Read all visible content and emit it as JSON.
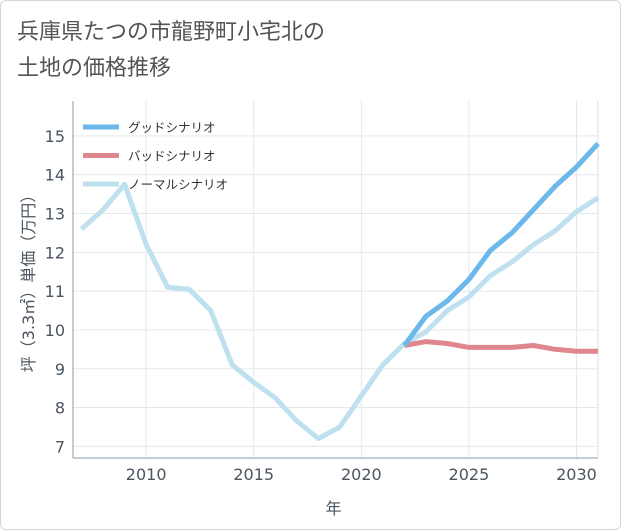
{
  "title_lines": [
    "兵庫県たつの市龍野町小宅北の",
    "土地の価格推移"
  ],
  "chart_data": {
    "type": "line",
    "title": "兵庫県たつの市龍野町小宅北の土地の価格推移",
    "xlabel": "年",
    "ylabel": "坪（3.3㎡）単価（万円）",
    "xlim": [
      2006.6,
      2031
    ],
    "ylim": [
      6.7,
      15.9
    ],
    "xticks": [
      2010,
      2015,
      2020,
      2025,
      2030
    ],
    "yticks": [
      7,
      8,
      9,
      10,
      11,
      12,
      13,
      14,
      15
    ],
    "grid": true,
    "legend_position": "top-left",
    "series": [
      {
        "name": "グッドシナリオ",
        "color": "#6cb8ea",
        "x": [
          2022,
          2023,
          2024,
          2025,
          2026,
          2027,
          2028,
          2029,
          2030,
          2031
        ],
        "y": [
          9.6,
          10.35,
          10.75,
          11.3,
          12.05,
          12.5,
          13.1,
          13.7,
          14.2,
          14.8
        ]
      },
      {
        "name": "バッドシナリオ",
        "color": "#e0868d",
        "x": [
          2022,
          2023,
          2024,
          2025,
          2026,
          2027,
          2028,
          2029,
          2030,
          2031
        ],
        "y": [
          9.6,
          9.7,
          9.65,
          9.55,
          9.55,
          9.55,
          9.6,
          9.5,
          9.45,
          9.45
        ]
      },
      {
        "name": "ノーマルシナリオ",
        "color": "#bfe0ef",
        "x": [
          2007,
          2008,
          2009,
          2010,
          2011,
          2012,
          2013,
          2014,
          2015,
          2016,
          2017,
          2018,
          2019,
          2020,
          2021,
          2022,
          2023,
          2024,
          2025,
          2026,
          2027,
          2028,
          2029,
          2030,
          2031
        ],
        "y": [
          12.6,
          13.1,
          13.75,
          12.2,
          11.1,
          11.05,
          10.5,
          9.1,
          8.65,
          8.25,
          7.65,
          7.2,
          7.5,
          8.3,
          9.1,
          9.65,
          9.95,
          10.5,
          10.85,
          11.4,
          11.75,
          12.2,
          12.55,
          13.05,
          13.4
        ]
      }
    ]
  }
}
